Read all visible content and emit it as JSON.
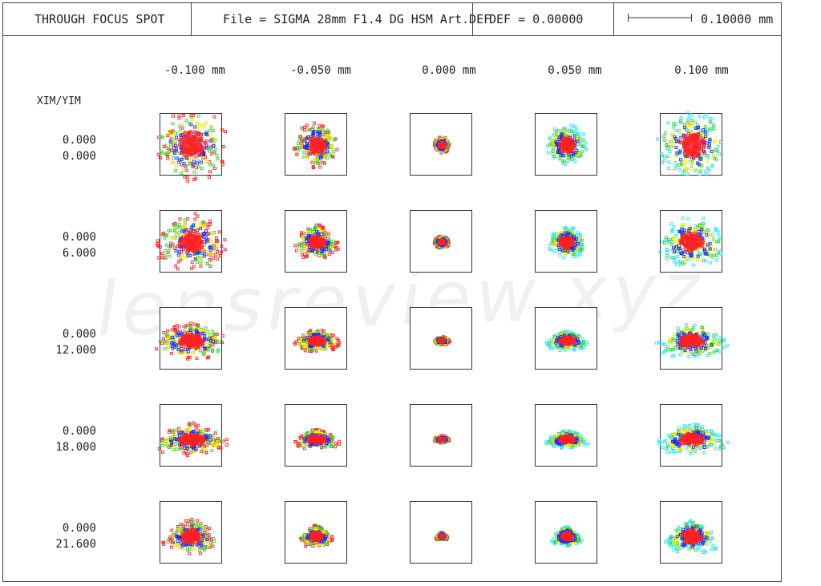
{
  "header": {
    "title": "THROUGH FOCUS SPOT",
    "file": "File = SIGMA 28mm F1.4 DG HSM Art.DEF",
    "defocus": "DEF = 0.00000",
    "scale_value": "0.10000  mm"
  },
  "columns": [
    "-0.100  mm",
    "-0.050  mm",
    "0.000  mm",
    "0.050  mm",
    "0.100  mm"
  ],
  "axis_title": "XIM/YIM",
  "rows": [
    {
      "xim": "0.000",
      "yim": "0.000"
    },
    {
      "xim": "0.000",
      "yim": "6.000"
    },
    {
      "xim": "0.000",
      "yim": "12.000"
    },
    {
      "xim": "0.000",
      "yim": "18.000"
    },
    {
      "xim": "0.000",
      "yim": "21.600"
    }
  ],
  "watermark": "lensreview.xyz",
  "colors": {
    "red": "#ff2020",
    "blue": "#1a2bff",
    "yellow": "#f2e600",
    "green": "#3cd23c",
    "cyan": "#2ee6ff",
    "frame": "#444444"
  }
}
